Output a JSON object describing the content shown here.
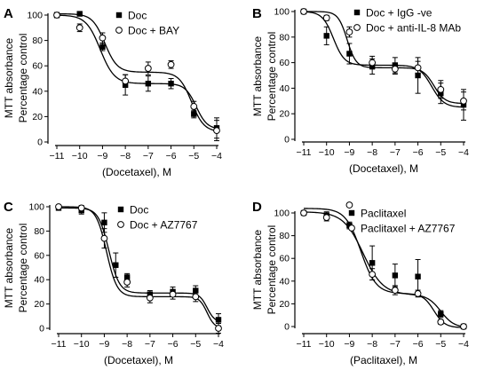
{
  "chart_data": [
    {
      "type": "scatter",
      "panel": "A",
      "xlabel": "(Docetaxel), M",
      "ylabel": [
        "MTT absorbance",
        "Percentage control"
      ],
      "xlim": [
        -11,
        -4
      ],
      "ylim": [
        0,
        100
      ],
      "xticks": [
        -11,
        -10,
        -9,
        -8,
        -7,
        -6,
        -5,
        -4
      ],
      "xtick_labels": [
        "−11",
        "−10",
        "−9",
        "−8",
        "−7",
        "−6",
        "−5",
        "−4"
      ],
      "yticks": [
        0,
        20,
        40,
        60,
        80,
        100
      ],
      "legend_position": "top-right",
      "series": [
        {
          "name": "Doc",
          "marker": "filled-square",
          "x": [
            -11,
            -10,
            -9,
            -8,
            -7,
            -6,
            -5,
            -4
          ],
          "y": [
            100,
            101,
            75,
            45,
            46,
            46,
            22,
            11
          ],
          "err": [
            2,
            1,
            3,
            8,
            6,
            4,
            3,
            8
          ],
          "fit": {
            "top": 100,
            "mid": 46,
            "bottom": 10,
            "ec1": -9.1,
            "h1": 1.4,
            "ec2": -4.9,
            "h2": 1.8
          }
        },
        {
          "name": "Doc + BAY",
          "marker": "open-circle",
          "x": [
            -11,
            -10,
            -9,
            -8,
            -7,
            -6,
            -5,
            -4
          ],
          "y": [
            100,
            90,
            82,
            48,
            58,
            61,
            28,
            9
          ],
          "err": [
            2,
            3,
            4,
            5,
            5,
            3,
            4,
            8
          ],
          "fit": {
            "top": 101,
            "mid": 55,
            "bottom": 8,
            "ec1": -8.9,
            "h1": 1.6,
            "ec2": -5.1,
            "h2": 1.6
          }
        }
      ]
    },
    {
      "type": "scatter",
      "panel": "B",
      "xlabel": "(Docetaxel), M",
      "ylabel": [
        "MTT absorbance",
        "Percentage control"
      ],
      "xlim": [
        -11,
        -4
      ],
      "ylim": [
        0,
        100
      ],
      "xticks": [
        -11,
        -10,
        -9,
        -8,
        -7,
        -6,
        -5,
        -4
      ],
      "xtick_labels": [
        "−11",
        "−10",
        "−9",
        "−8",
        "−7",
        "−6",
        "−5",
        "−4"
      ],
      "yticks": [
        0,
        20,
        40,
        60,
        80,
        100
      ],
      "legend_position": "top-right",
      "series": [
        {
          "name": "Doc + IgG -ve",
          "marker": "filled-square",
          "x": [
            -11,
            -10,
            -9,
            -8,
            -7,
            -6,
            -5,
            -4
          ],
          "y": [
            100,
            81,
            67,
            57,
            58,
            50,
            36,
            27
          ],
          "err": [
            1,
            7,
            8,
            6,
            6,
            14,
            8,
            12
          ],
          "fit": {
            "top": 100,
            "mid": 58,
            "bottom": 25,
            "ec1": -9.7,
            "h1": 1.8,
            "ec2": -5.4,
            "h2": 1.6
          }
        },
        {
          "name": "Doc + anti-IL-8 MAb",
          "marker": "open-circle",
          "x": [
            -11,
            -10,
            -9,
            -8,
            -7,
            -6,
            -5,
            -4
          ],
          "y": [
            100,
            95,
            84,
            60,
            55,
            56,
            39,
            30
          ],
          "err": [
            1,
            2,
            4,
            5,
            4,
            5,
            7,
            7
          ],
          "fit": {
            "top": 100,
            "mid": 56,
            "bottom": 28,
            "ec1": -9.1,
            "h1": 2.2,
            "ec2": -5.3,
            "h2": 1.8
          }
        }
      ]
    },
    {
      "type": "scatter",
      "panel": "C",
      "xlabel": "(Docetaxel), M",
      "ylabel": [
        "MTT absorbance",
        "Percentage control"
      ],
      "xlim": [
        -11,
        -4
      ],
      "ylim": [
        0,
        100
      ],
      "xticks": [
        -11,
        -10,
        -9,
        -8,
        -7,
        -6,
        -5,
        -4
      ],
      "xtick_labels": [
        "−11",
        "−10",
        "−9",
        "−8",
        "−7",
        "−6",
        "−5",
        "−4"
      ],
      "yticks": [
        0,
        20,
        40,
        60,
        80,
        100
      ],
      "legend_position": "top-right",
      "series": [
        {
          "name": "Doc",
          "marker": "filled-square",
          "x": [
            -11,
            -10,
            -9,
            -8.5,
            -8,
            -7,
            -6,
            -5,
            -4
          ],
          "y": [
            99,
            97,
            87,
            52,
            42,
            28,
            30,
            31,
            7
          ],
          "err": [
            1,
            3,
            8,
            10,
            3,
            3,
            4,
            4,
            5
          ],
          "fit": {
            "top": 99,
            "mid": 29,
            "bottom": 5,
            "ec1": -8.8,
            "h1": 1.9,
            "ec2": -4.5,
            "h2": 2.6
          }
        },
        {
          "name": "Doc + AZ7767",
          "marker": "open-circle",
          "x": [
            -11,
            -10,
            -9,
            -8,
            -7,
            -6,
            -5,
            -4
          ],
          "y": [
            100,
            99,
            74,
            38,
            25,
            28,
            26,
            0
          ],
          "err": [
            1,
            2,
            8,
            4,
            4,
            4,
            4,
            4
          ],
          "fit": {
            "top": 100,
            "mid": 26,
            "bottom": 0,
            "ec1": -8.9,
            "h1": 1.9,
            "ec2": -4.5,
            "h2": 2.6
          }
        }
      ]
    },
    {
      "type": "scatter",
      "panel": "D",
      "xlabel": "(Paclitaxel), M",
      "ylabel": [
        "MTT absorbance",
        "Percentage control"
      ],
      "xlim": [
        -11,
        -4
      ],
      "ylim": [
        0,
        100
      ],
      "xticks": [
        -11,
        -10,
        -9,
        -8,
        -7,
        -6,
        -5,
        -4
      ],
      "xtick_labels": [
        "−11",
        "−10",
        "−9",
        "−8",
        "−7",
        "−6",
        "−5",
        "−4"
      ],
      "yticks": [
        0,
        20,
        40,
        60,
        80,
        100
      ],
      "legend_position": "top-right",
      "series": [
        {
          "name": "Paclitaxel",
          "marker": "filled-square",
          "x": [
            -11,
            -10,
            -9,
            -8,
            -7,
            -6,
            -5,
            -4
          ],
          "y": [
            100,
            98,
            89,
            56,
            45,
            44,
            11,
            0
          ],
          "err": [
            2,
            3,
            3,
            15,
            10,
            15,
            3,
            1
          ],
          "fit": {
            "top": 101,
            "mid": 28,
            "bottom": -1,
            "ec1": -8.4,
            "h1": 1.0,
            "ec2": -5.0,
            "h2": 1.5
          }
        },
        {
          "name": "Paclitaxel + AZ7767",
          "marker": "open-circle",
          "x": [
            -11,
            -10,
            -9,
            -8,
            -7,
            -6,
            -5,
            -4
          ],
          "y": [
            100,
            96,
            107,
            46,
            32,
            29,
            4,
            0
          ],
          "err": [
            1,
            3,
            1,
            5,
            4,
            3,
            2,
            1
          ],
          "fit": {
            "top": 104,
            "mid": 29,
            "bottom": -1,
            "ec1": -8.5,
            "h1": 1.3,
            "ec2": -5.3,
            "h2": 1.8
          }
        }
      ]
    }
  ]
}
